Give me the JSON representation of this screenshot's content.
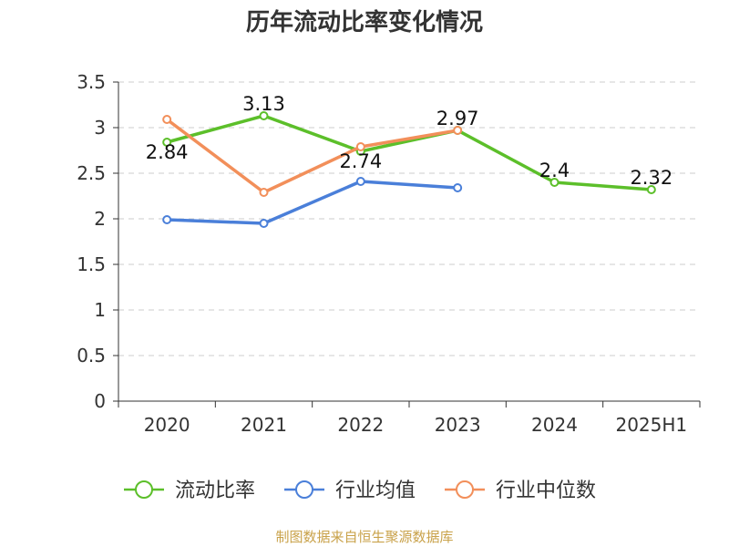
{
  "chart_data": {
    "type": "line",
    "title": "历年流动比率变化情况",
    "categories": [
      "2020",
      "2021",
      "2022",
      "2023",
      "2024",
      "2025H1"
    ],
    "ylim": [
      0,
      3.5
    ],
    "yticks": [
      "0",
      "0.5",
      "1",
      "1.5",
      "2",
      "2.5",
      "3",
      "3.5"
    ],
    "grid": true,
    "legend_position": "bottom",
    "series": [
      {
        "name": "流动比率",
        "color": "#5cbf2a",
        "values": [
          2.84,
          3.13,
          2.74,
          2.97,
          2.4,
          2.32
        ],
        "data_labels": [
          "2.84",
          "3.13",
          "2.74",
          "2.97",
          "2.4",
          "2.32"
        ]
      },
      {
        "name": "行业均值",
        "color": "#4a7fd9",
        "values": [
          1.99,
          1.95,
          2.41,
          2.34,
          null,
          null
        ]
      },
      {
        "name": "行业中位数",
        "color": "#f28f5a",
        "values": [
          3.09,
          2.29,
          2.79,
          2.97,
          null,
          null
        ]
      }
    ]
  },
  "source": "制图数据来自恒生聚源数据库"
}
